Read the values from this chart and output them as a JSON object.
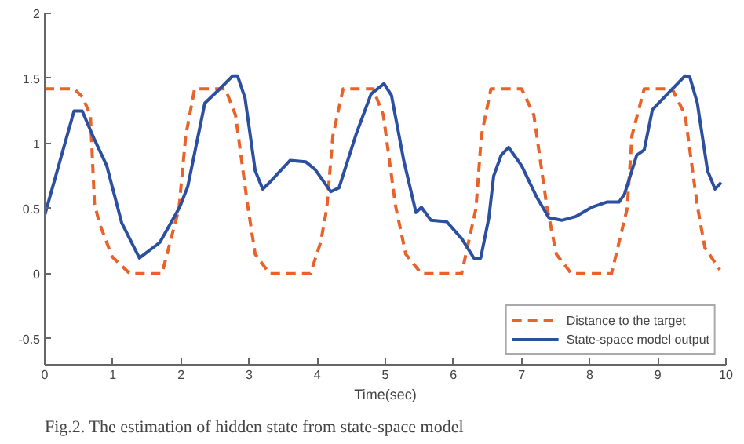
{
  "chart_data": {
    "type": "line",
    "xlabel": "Time(sec)",
    "annotations": [
      "Fig.2. The estimation of hidden state from state-space model"
    ],
    "xlim": [
      0,
      10
    ],
    "ylim": [
      -0.7,
      2
    ],
    "xticks": [
      0,
      1,
      2,
      3,
      4,
      5,
      6,
      7,
      8,
      9,
      10
    ],
    "yticks": [
      -0.5,
      0,
      0.5,
      1,
      1.5,
      2
    ],
    "grid": false,
    "legend": "bottom right",
    "series": [
      {
        "name": "Distance to the target",
        "color": "#e8622a",
        "line_style": "dashed",
        "x": [
          0,
          0.43,
          0.55,
          0.67,
          0.73,
          0.8,
          0.99,
          1.25,
          1.72,
          1.84,
          1.97,
          2.07,
          2.2,
          2.65,
          2.8,
          2.98,
          3.09,
          3.3,
          3.9,
          4.05,
          4.14,
          4.23,
          4.38,
          4.82,
          4.97,
          5.15,
          5.3,
          5.53,
          6.12,
          6.22,
          6.33,
          6.41,
          6.55,
          7.0,
          7.18,
          7.37,
          7.51,
          7.73,
          8.32,
          8.43,
          8.55,
          8.62,
          8.8,
          9.21,
          9.4,
          9.58,
          9.69,
          9.91
        ],
        "values": [
          1.42,
          1.42,
          1.36,
          1.22,
          0.54,
          0.39,
          0.13,
          0,
          0,
          0.24,
          0.5,
          1.06,
          1.42,
          1.42,
          1.22,
          0.52,
          0.15,
          0,
          0,
          0.24,
          0.5,
          1.06,
          1.42,
          1.42,
          1.22,
          0.52,
          0.15,
          0,
          0,
          0.24,
          0.5,
          1.06,
          1.42,
          1.42,
          1.22,
          0.52,
          0.15,
          0,
          0,
          0.24,
          0.5,
          1.06,
          1.42,
          1.42,
          1.22,
          0.52,
          0.2,
          0.03
        ]
      },
      {
        "name": "State-space model output",
        "color": "#2c4fa0",
        "line_style": "solid",
        "x": [
          0,
          0.43,
          0.55,
          0.73,
          0.91,
          1.13,
          1.39,
          1.69,
          1.98,
          2.1,
          2.35,
          2.57,
          2.76,
          2.83,
          2.94,
          3.09,
          3.2,
          3.3,
          3.6,
          3.83,
          3.97,
          4.2,
          4.32,
          4.57,
          4.79,
          4.98,
          5.09,
          5.27,
          5.45,
          5.53,
          5.67,
          5.9,
          6.12,
          6.3,
          6.4,
          6.52,
          6.59,
          6.7,
          6.81,
          7.0,
          7.22,
          7.4,
          7.59,
          7.8,
          8.03,
          8.25,
          8.43,
          8.51,
          8.69,
          8.8,
          8.92,
          9.14,
          9.4,
          9.47,
          9.58,
          9.73,
          9.84,
          9.93
        ],
        "values": [
          0.45,
          1.25,
          1.25,
          1.03,
          0.83,
          0.39,
          0.12,
          0.24,
          0.51,
          0.67,
          1.31,
          1.42,
          1.52,
          1.52,
          1.35,
          0.79,
          0.65,
          0.7,
          0.87,
          0.86,
          0.8,
          0.63,
          0.66,
          1.07,
          1.38,
          1.46,
          1.37,
          0.87,
          0.47,
          0.51,
          0.41,
          0.4,
          0.27,
          0.12,
          0.12,
          0.43,
          0.75,
          0.91,
          0.97,
          0.83,
          0.59,
          0.43,
          0.41,
          0.44,
          0.51,
          0.55,
          0.55,
          0.61,
          0.91,
          0.95,
          1.26,
          1.38,
          1.52,
          1.51,
          1.31,
          0.79,
          0.65,
          0.7
        ]
      }
    ]
  }
}
